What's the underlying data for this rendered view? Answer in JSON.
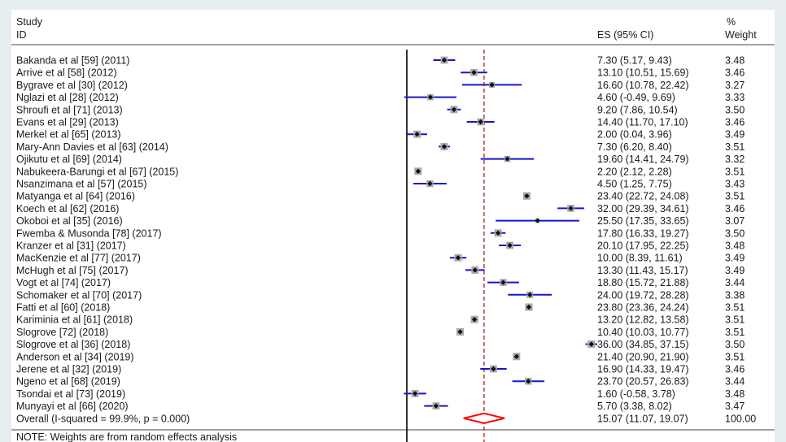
{
  "chart_data": {
    "type": "forest",
    "header": {
      "study_line1": "Study",
      "study_line2": "ID",
      "es_label": "ES (95% CI)",
      "weight_line1": "%",
      "weight_line2": "Weight"
    },
    "null_line": 0,
    "overall_line": 15.07,
    "x_range": [
      0,
      38
    ],
    "colors": {
      "ci": "#1515d0",
      "point": "#111111",
      "box": "#a9a9a9",
      "diamond": "#ff0000",
      "dash": "#aa2222"
    },
    "studies": [
      {
        "label": "Bakanda et al [59] (2011)",
        "es": 7.3,
        "lo": 5.17,
        "hi": 9.43,
        "es_text": "7.30 (5.17, 9.43)",
        "weight": "3.48"
      },
      {
        "label": "Arrive  et al [58] (2012)",
        "es": 13.1,
        "lo": 10.51,
        "hi": 15.69,
        "es_text": "13.10 (10.51, 15.69)",
        "weight": "3.46"
      },
      {
        "label": "Bygrave et al [30] (2012)",
        "es": 16.6,
        "lo": 10.78,
        "hi": 22.42,
        "es_text": "16.60 (10.78, 22.42)",
        "weight": "3.27"
      },
      {
        "label": "Nglazi et al [28] (2012)",
        "es": 4.6,
        "lo": -0.49,
        "hi": 9.69,
        "es_text": "4.60 (-0.49, 9.69)",
        "weight": "3.33"
      },
      {
        "label": "Shroufi et al [71] (2013)",
        "es": 9.2,
        "lo": 7.86,
        "hi": 10.54,
        "es_text": "9.20 (7.86, 10.54)",
        "weight": "3.50"
      },
      {
        "label": "Evans et al [29] (2013)",
        "es": 14.4,
        "lo": 11.7,
        "hi": 17.1,
        "es_text": "14.40 (11.70, 17.10)",
        "weight": "3.46"
      },
      {
        "label": "Merkel et al [65] (2013)",
        "es": 2.0,
        "lo": 0.04,
        "hi": 3.96,
        "es_text": "2.00 (0.04, 3.96)",
        "weight": "3.49"
      },
      {
        "label": "Mary-Ann Davies et al [63] (2014)",
        "es": 7.3,
        "lo": 6.2,
        "hi": 8.4,
        "es_text": "7.30 (6.20, 8.40)",
        "weight": "3.51"
      },
      {
        "label": "Ojikutu et al [69] (2014)",
        "es": 19.6,
        "lo": 14.41,
        "hi": 24.79,
        "es_text": "19.60 (14.41, 24.79)",
        "weight": "3.32"
      },
      {
        "label": "Nabukeera-Barungi et al [67] (2015)",
        "es": 2.2,
        "lo": 2.12,
        "hi": 2.28,
        "es_text": "2.20 (2.12, 2.28)",
        "weight": "3.51"
      },
      {
        "label": "Nsanzimana et al [57] (2015)",
        "es": 4.5,
        "lo": 1.25,
        "hi": 7.75,
        "es_text": "4.50 (1.25, 7.75)",
        "weight": "3.43"
      },
      {
        "label": "Matyanga et al [64] (2016)",
        "es": 23.4,
        "lo": 22.72,
        "hi": 24.08,
        "es_text": "23.40 (22.72, 24.08)",
        "weight": "3.51"
      },
      {
        "label": "Koech et al [62] (2016)",
        "es": 32.0,
        "lo": 29.39,
        "hi": 34.61,
        "es_text": "32.00 (29.39, 34.61)",
        "weight": "3.46"
      },
      {
        "label": "Okoboi et al [35] (2016)",
        "es": 25.5,
        "lo": 17.35,
        "hi": 33.65,
        "es_text": "25.50 (17.35, 33.65)",
        "weight": "3.07"
      },
      {
        "label": "Fwemba & Musonda [78] (2017)",
        "es": 17.8,
        "lo": 16.33,
        "hi": 19.27,
        "es_text": "17.80 (16.33, 19.27)",
        "weight": "3.50"
      },
      {
        "label": "Kranzer et al [31] (2017)",
        "es": 20.1,
        "lo": 17.95,
        "hi": 22.25,
        "es_text": "20.10 (17.95, 22.25)",
        "weight": "3.48"
      },
      {
        "label": "MacKenzie et al [77] (2017)",
        "es": 10.0,
        "lo": 8.39,
        "hi": 11.61,
        "es_text": "10.00 (8.39, 11.61)",
        "weight": "3.49"
      },
      {
        "label": "McHugh et al [75]  (2017)",
        "es": 13.3,
        "lo": 11.43,
        "hi": 15.17,
        "es_text": "13.30 (11.43, 15.17)",
        "weight": "3.49"
      },
      {
        "label": "Vogt et al [74] (2017)",
        "es": 18.8,
        "lo": 15.72,
        "hi": 21.88,
        "es_text": "18.80 (15.72, 21.88)",
        "weight": "3.44"
      },
      {
        "label": "Schomaker et al [70] (2017)",
        "es": 24.0,
        "lo": 19.72,
        "hi": 28.28,
        "es_text": "24.00 (19.72, 28.28)",
        "weight": "3.38"
      },
      {
        "label": "Fatti et al [60] (2018)",
        "es": 23.8,
        "lo": 23.36,
        "hi": 24.24,
        "es_text": "23.80 (23.36, 24.24)",
        "weight": "3.51"
      },
      {
        "label": "Kariminia et al [61] (2018)",
        "es": 13.2,
        "lo": 12.82,
        "hi": 13.58,
        "es_text": "13.20 (12.82, 13.58)",
        "weight": "3.51"
      },
      {
        "label": "Slogrove [72] (2018)",
        "es": 10.4,
        "lo": 10.03,
        "hi": 10.77,
        "es_text": "10.40 (10.03, 10.77)",
        "weight": "3.51"
      },
      {
        "label": "Slogrove et al [36] (2018)",
        "es": 36.0,
        "lo": 34.85,
        "hi": 37.15,
        "es_text": "36.00 (34.85, 37.15)",
        "weight": "3.50"
      },
      {
        "label": "Anderson et al [34] (2019)",
        "es": 21.4,
        "lo": 20.9,
        "hi": 21.9,
        "es_text": "21.40 (20.90, 21.90)",
        "weight": "3.51"
      },
      {
        "label": "Jerene et al [32] (2019)",
        "es": 16.9,
        "lo": 14.33,
        "hi": 19.47,
        "es_text": "16.90 (14.33, 19.47)",
        "weight": "3.46"
      },
      {
        "label": "Ngeno et al [68] (2019)",
        "es": 23.7,
        "lo": 20.57,
        "hi": 26.83,
        "es_text": "23.70 (20.57, 26.83)",
        "weight": "3.44"
      },
      {
        "label": "Tsondai et al [73] (2019)",
        "es": 1.6,
        "lo": -0.58,
        "hi": 3.78,
        "es_text": "1.60 (-0.58, 3.78)",
        "weight": "3.48"
      },
      {
        "label": "Munyayi et al [66] (2020)",
        "es": 5.7,
        "lo": 3.38,
        "hi": 8.02,
        "es_text": "5.70 (3.38, 8.02)",
        "weight": "3.47"
      }
    ],
    "overall": {
      "label": "Overall  (I-squared = 99.9%, p = 0.000)",
      "es": 15.07,
      "lo": 11.07,
      "hi": 19.07,
      "es_text": "15.07 (11.07, 19.07)",
      "weight": "100.00"
    },
    "note": "NOTE: Weights are from random effects analysis"
  }
}
